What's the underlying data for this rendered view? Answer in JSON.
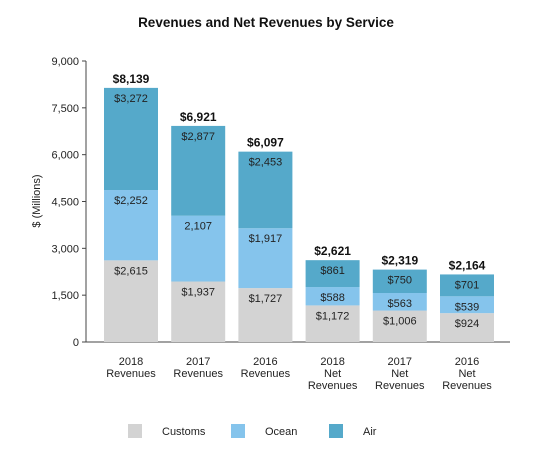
{
  "chart_data": {
    "type": "bar",
    "stacked": true,
    "title": "Revenues and Net Revenues by Service",
    "ylabel": "$ (Millions)",
    "ylim": [
      0,
      9000
    ],
    "yticks": [
      "0",
      "1,500",
      "3,000",
      "4,500",
      "6,000",
      "7,500",
      "9,000"
    ],
    "ytick_values": [
      0,
      1500,
      3000,
      4500,
      6000,
      7500,
      9000
    ],
    "categories": [
      [
        "2018",
        "Revenues"
      ],
      [
        "2017",
        "Revenues"
      ],
      [
        "2016",
        "Revenues"
      ],
      [
        "2018",
        "Net",
        "Revenues"
      ],
      [
        "2017",
        "Net",
        "Revenues"
      ],
      [
        "2016",
        "Net",
        "Revenues"
      ]
    ],
    "series": [
      {
        "name": "Customs",
        "color": "#d3d3d3",
        "values": [
          2615,
          1937,
          1727,
          1172,
          1006,
          924
        ],
        "labels": [
          "$2,615",
          "$1,937",
          "$1,727",
          "$1,172",
          "$1,006",
          "$924"
        ]
      },
      {
        "name": "Ocean",
        "color": "#85c4ec",
        "values": [
          2252,
          2107,
          1917,
          588,
          563,
          539
        ],
        "labels": [
          "$2,252",
          "2,107",
          "$1,917",
          "$588",
          "$563",
          "$539"
        ]
      },
      {
        "name": "Air",
        "color": "#55a9ca",
        "values": [
          3272,
          2877,
          2453,
          861,
          750,
          701
        ],
        "labels": [
          "$3,272",
          "$2,877",
          "$2,453",
          "$861",
          "$750",
          "$701"
        ]
      }
    ],
    "totals": [
      8139,
      6921,
      6097,
      2621,
      2319,
      2164
    ],
    "total_labels": [
      "$8,139",
      "$6,921",
      "$6,097",
      "$2,621",
      "$2,319",
      "$2,164"
    ],
    "grid": false,
    "legend": "bottom"
  }
}
